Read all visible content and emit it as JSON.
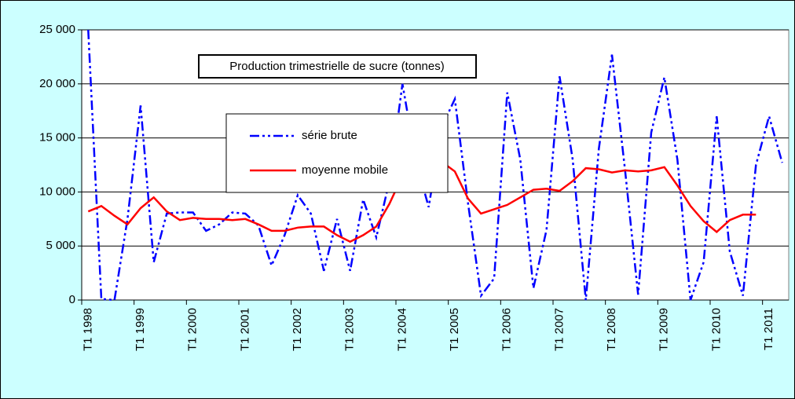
{
  "chart_data": {
    "type": "line",
    "title": "Production trimestrielle de sucre (tonnes)",
    "categories": [
      "T1 1998",
      null,
      null,
      null,
      "T1 1999",
      null,
      null,
      null,
      "T1 2000",
      null,
      null,
      null,
      "T1 2001",
      null,
      null,
      null,
      "T1 2002",
      null,
      null,
      null,
      "T1 2003",
      null,
      null,
      null,
      "T1 2004",
      null,
      null,
      null,
      "T1 2005",
      null,
      null,
      null,
      "T1 2006",
      null,
      null,
      null,
      "T1 2007",
      null,
      null,
      null,
      "T1 2008",
      null,
      null,
      null,
      "T1 2009",
      null,
      null,
      null,
      "T1 2010",
      null,
      null,
      null,
      "T1 2011",
      null
    ],
    "series": [
      {
        "name": "série brute",
        "color": "#0000ff",
        "dash": "dash-dot-dot",
        "values": [
          25000,
          100,
          0,
          7500,
          18000,
          3500,
          8000,
          8100,
          8100,
          6400,
          7000,
          8100,
          8000,
          6900,
          3200,
          6000,
          9700,
          8000,
          2700,
          7500,
          2700,
          9300,
          5800,
          11000,
          20000,
          13000,
          8600,
          16000,
          18600,
          9000,
          400,
          2000,
          19200,
          13000,
          1100,
          6500,
          20700,
          13000,
          0,
          14000,
          22700,
          12000,
          500,
          15500,
          20600,
          13000,
          0,
          3500,
          17000,
          4500,
          400,
          12500,
          17000,
          12700
        ]
      },
      {
        "name": "moyenne mobile",
        "color": "#ff0000",
        "dash": "solid",
        "values": [
          8200,
          8700,
          7800,
          7000,
          8500,
          9500,
          8200,
          7400,
          7600,
          7500,
          7500,
          7400,
          7500,
          7000,
          6400,
          6400,
          6700,
          6800,
          6800,
          6000,
          5400,
          6000,
          6800,
          8900,
          11500,
          13000,
          13500,
          12800,
          11900,
          9400,
          8000,
          8400,
          8800,
          9500,
          10200,
          10300,
          10100,
          11000,
          12200,
          12100,
          11800,
          12000,
          11900,
          12000,
          12300,
          10600,
          8700,
          7300,
          6300,
          7400,
          7900,
          7900,
          null,
          null
        ]
      }
    ],
    "ylim": [
      0,
      25000
    ],
    "yticks": [
      0,
      {
        "value": 5000,
        "label": "5 000"
      },
      {
        "value": 10000,
        "label": "10 000"
      },
      {
        "value": 15000,
        "label": "15 000"
      },
      {
        "value": 20000,
        "label": "20 000"
      },
      {
        "value": 25000,
        "label": "25 000"
      }
    ],
    "grid": true
  }
}
